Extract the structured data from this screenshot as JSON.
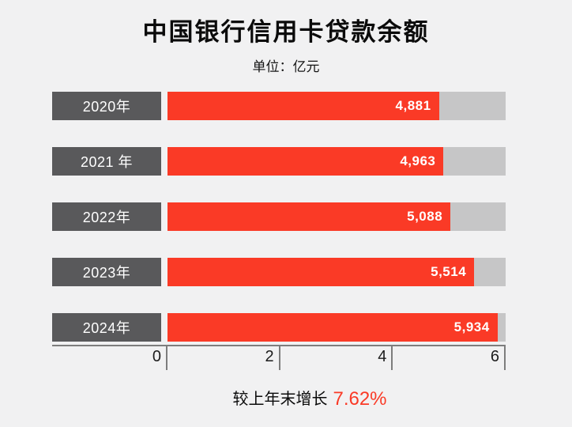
{
  "header": {
    "title": "中国银行信用卡贷款余额",
    "unit_label": "单位：亿元"
  },
  "footer": {
    "growth_prefix": "较上年末增长",
    "growth_value": "7.62%"
  },
  "colors": {
    "background": "#f1f1f2",
    "bar_red": "#fa3a26",
    "year_label_gray": "#59595b",
    "track_gray": "#c6c6c7",
    "axis_gray": "#7d7d7d",
    "text_black": "#0b0b0b"
  },
  "chart_data": {
    "type": "bar",
    "orientation": "horizontal",
    "title": "中国银行信用卡贷款余额",
    "subtitle": "单位：亿元",
    "unit": "亿元",
    "categories": [
      "2020年",
      "2021 年",
      "2022年",
      "2023年",
      "2024年"
    ],
    "values": [
      4881,
      4963,
      5088,
      5514,
      5934
    ],
    "value_labels": [
      "4,881",
      "4,963",
      "5,088",
      "5,514",
      "5,934"
    ],
    "axis_ticks": [
      0,
      2,
      4,
      6
    ],
    "axis_tick_unit_multiplier": 1000,
    "xlim": [
      0,
      6000
    ],
    "render_scale_max": 6080,
    "grid": false,
    "legend": false,
    "annotation": "较上年末增长 7.62%"
  }
}
